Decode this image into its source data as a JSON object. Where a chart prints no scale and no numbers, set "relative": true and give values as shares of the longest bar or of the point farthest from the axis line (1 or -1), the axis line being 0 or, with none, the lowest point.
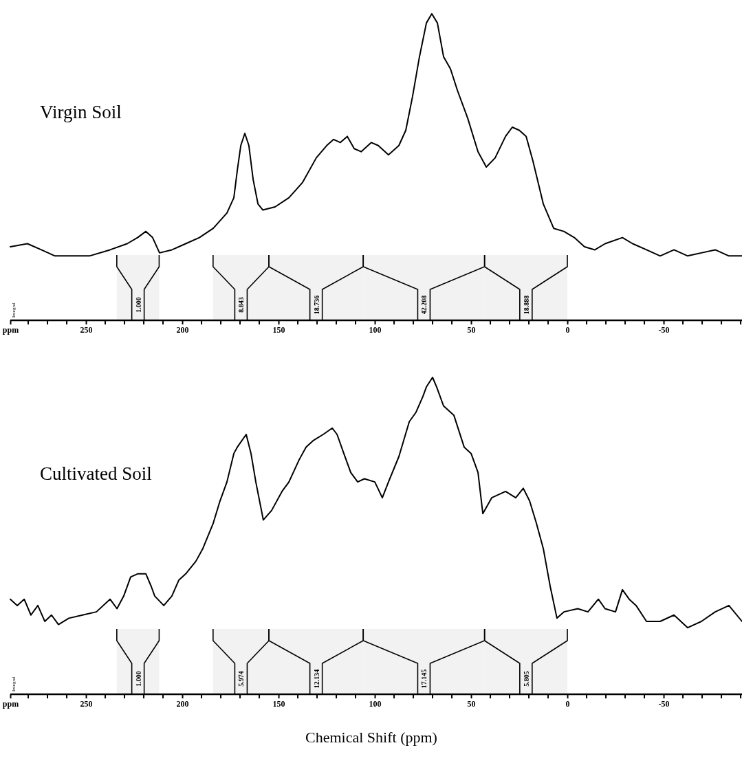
{
  "chart_data": [
    {
      "type": "line",
      "title": "Virgin Soil",
      "relative": true,
      "tick_labels": "x",
      "xlim": [
        289.3,
        -90.7
      ],
      "xticks": [
        {
          "value": 289.3,
          "label": "ppm"
        },
        {
          "value": 280,
          "label": null
        },
        {
          "value": 270,
          "label": null
        },
        {
          "value": 260,
          "label": null
        },
        250,
        {
          "value": 240,
          "label": null
        },
        {
          "value": 230,
          "label": null
        },
        {
          "value": 220,
          "label": null
        },
        {
          "value": 210,
          "label": null
        },
        200,
        {
          "value": 190,
          "label": null
        },
        {
          "value": 180,
          "label": null
        },
        {
          "value": 170,
          "label": null
        },
        {
          "value": 160,
          "label": null
        },
        150,
        {
          "value": 140,
          "label": null
        },
        {
          "value": 130,
          "label": null
        },
        {
          "value": 120,
          "label": null
        },
        {
          "value": 110,
          "label": null
        },
        100,
        {
          "value": 90,
          "label": null
        },
        {
          "value": 80,
          "label": null
        },
        {
          "value": 70,
          "label": null
        },
        {
          "value": 60,
          "label": null
        },
        50,
        {
          "value": 40,
          "label": null
        },
        {
          "value": 30,
          "label": null
        },
        {
          "value": 20,
          "label": null
        },
        {
          "value": 10,
          "label": null
        },
        0,
        {
          "value": -10,
          "label": null
        },
        {
          "value": -20,
          "label": null
        },
        {
          "value": -30,
          "label": null
        },
        {
          "value": -40,
          "label": null
        },
        -50,
        {
          "value": -60,
          "label": null
        },
        {
          "value": -70,
          "label": null
        },
        {
          "value": -80,
          "label": null
        },
        {
          "value": -90,
          "label": null
        }
      ],
      "annotations": [
        "Integral"
      ],
      "bands": [
        {
          "axis": "x",
          "from": 234,
          "to": 212,
          "label": "1.000"
        },
        {
          "axis": "x",
          "from": 184,
          "to": 155,
          "label": "8.843"
        },
        {
          "axis": "x",
          "from": 155,
          "to": 106,
          "label": "18.736"
        },
        {
          "axis": "x",
          "from": 106,
          "to": 43,
          "label": "42.208"
        },
        {
          "axis": "x",
          "from": 43,
          "to": 0,
          "label": "18.888"
        }
      ],
      "series": [
        {
          "color": "#000000",
          "x": [
            289.3,
            280.4,
            273.2,
            266.1,
            258.9,
            248.2,
            237.5,
            228.6,
            223.2,
            218.9,
            215.4,
            211.8,
            205.4,
            198.2,
            191.1,
            183.9,
            176.8,
            173.2,
            171.4,
            169.6,
            167.5,
            165.4,
            163.2,
            160.7,
            158.2,
            151.8,
            144.6,
            137.5,
            130.4,
            125.0,
            121.4,
            117.9,
            114.3,
            110.7,
            107.1,
            101.8,
            98.2,
            92.9,
            87.5,
            83.9,
            80.4,
            76.8,
            73.2,
            70.4,
            67.5,
            64.3,
            60.7,
            57.1,
            51.8,
            46.4,
            42.1,
            37.5,
            32.1,
            28.6,
            25.0,
            21.4,
            17.9,
            12.5,
            7.1,
            1.8,
            -3.6,
            -8.9,
            -14.3,
            -19.6,
            -28.6,
            -33.9,
            -41.1,
            -48.2,
            -55.4,
            -62.5,
            -69.6,
            -76.8,
            -83.9,
            -90.7
          ],
          "values": [
            0.24,
            0.25,
            0.23,
            0.21,
            0.21,
            0.21,
            0.23,
            0.25,
            0.27,
            0.29,
            0.27,
            0.22,
            0.23,
            0.25,
            0.27,
            0.3,
            0.35,
            0.4,
            0.49,
            0.57,
            0.61,
            0.57,
            0.46,
            0.38,
            0.36,
            0.37,
            0.4,
            0.45,
            0.53,
            0.57,
            0.59,
            0.58,
            0.6,
            0.56,
            0.55,
            0.58,
            0.57,
            0.54,
            0.57,
            0.62,
            0.73,
            0.86,
            0.97,
            1,
            0.97,
            0.86,
            0.82,
            0.75,
            0.66,
            0.55,
            0.5,
            0.53,
            0.6,
            0.63,
            0.62,
            0.6,
            0.52,
            0.38,
            0.3,
            0.29,
            0.27,
            0.24,
            0.23,
            0.25,
            0.27,
            0.25,
            0.23,
            0.21,
            0.23,
            0.21,
            0.22,
            0.23,
            0.21,
            0.21
          ]
        }
      ]
    },
    {
      "type": "line",
      "title": "Cultivated Soil",
      "relative": true,
      "tick_labels": "x",
      "xlabel": "Chemical Shift (ppm)",
      "xlim": [
        289.3,
        -90.7
      ],
      "xticks": [
        {
          "value": 289.3,
          "label": "ppm"
        },
        {
          "value": 280,
          "label": null
        },
        {
          "value": 270,
          "label": null
        },
        {
          "value": 260,
          "label": null
        },
        250,
        {
          "value": 240,
          "label": null
        },
        {
          "value": 230,
          "label": null
        },
        {
          "value": 220,
          "label": null
        },
        {
          "value": 210,
          "label": null
        },
        200,
        {
          "value": 190,
          "label": null
        },
        {
          "value": 180,
          "label": null
        },
        {
          "value": 170,
          "label": null
        },
        {
          "value": 160,
          "label": null
        },
        150,
        {
          "value": 140,
          "label": null
        },
        {
          "value": 130,
          "label": null
        },
        {
          "value": 120,
          "label": null
        },
        {
          "value": 110,
          "label": null
        },
        100,
        {
          "value": 90,
          "label": null
        },
        {
          "value": 80,
          "label": null
        },
        {
          "value": 70,
          "label": null
        },
        {
          "value": 60,
          "label": null
        },
        50,
        {
          "value": 40,
          "label": null
        },
        {
          "value": 30,
          "label": null
        },
        {
          "value": 20,
          "label": null
        },
        {
          "value": 10,
          "label": null
        },
        0,
        {
          "value": -10,
          "label": null
        },
        {
          "value": -20,
          "label": null
        },
        {
          "value": -30,
          "label": null
        },
        {
          "value": -40,
          "label": null
        },
        -50,
        {
          "value": -60,
          "label": null
        },
        {
          "value": -70,
          "label": null
        },
        {
          "value": -80,
          "label": null
        },
        {
          "value": -90,
          "label": null
        }
      ],
      "annotations": [
        "Integral"
      ],
      "bands": [
        {
          "axis": "x",
          "from": 234,
          "to": 212,
          "label": "1.000"
        },
        {
          "axis": "x",
          "from": 184,
          "to": 155,
          "label": "5.974"
        },
        {
          "axis": "x",
          "from": 155,
          "to": 106,
          "label": "12.134"
        },
        {
          "axis": "x",
          "from": 106,
          "to": 43,
          "label": "17.145"
        },
        {
          "axis": "x",
          "from": 43,
          "to": 0,
          "label": "5.805"
        }
      ],
      "series": [
        {
          "color": "#000000",
          "x": [
            289.3,
            285.7,
            282.1,
            278.6,
            275.0,
            271.4,
            267.9,
            264.3,
            258.9,
            251.8,
            244.6,
            237.5,
            233.9,
            230.4,
            226.8,
            223.2,
            218.9,
            216.1,
            214.3,
            209.6,
            205.4,
            201.8,
            198.2,
            192.9,
            189.3,
            183.9,
            180.4,
            176.8,
            173.2,
            171.4,
            166.8,
            164.3,
            161.8,
            157.9,
            153.6,
            148.2,
            144.6,
            139.3,
            135.7,
            132.1,
            126.8,
            122.1,
            119.6,
            116.1,
            112.5,
            108.9,
            105.4,
            100.0,
            96.1,
            92.9,
            87.5,
            82.1,
            78.6,
            75.0,
            73.2,
            70.0,
            67.9,
            64.3,
            58.9,
            53.6,
            50.0,
            46.4,
            43.9,
            39.3,
            32.1,
            26.8,
            22.9,
            19.6,
            16.1,
            12.5,
            8.9,
            5.4,
            1.8,
            -5.4,
            -10.7,
            -16.1,
            -19.6,
            -25.0,
            -28.6,
            -32.1,
            -35.7,
            -41.1,
            -48.2,
            -55.4,
            -62.5,
            -69.6,
            -76.8,
            -83.9,
            -90.7
          ],
          "values": [
            0.3,
            0.28,
            0.3,
            0.25,
            0.28,
            0.23,
            0.25,
            0.22,
            0.24,
            0.25,
            0.26,
            0.3,
            0.27,
            0.31,
            0.37,
            0.38,
            0.38,
            0.34,
            0.31,
            0.28,
            0.31,
            0.36,
            0.38,
            0.42,
            0.46,
            0.54,
            0.61,
            0.67,
            0.76,
            0.78,
            0.82,
            0.76,
            0.67,
            0.55,
            0.58,
            0.64,
            0.67,
            0.74,
            0.78,
            0.8,
            0.82,
            0.84,
            0.82,
            0.76,
            0.7,
            0.67,
            0.68,
            0.67,
            0.62,
            0.67,
            0.75,
            0.86,
            0.89,
            0.94,
            0.97,
            1,
            0.97,
            0.91,
            0.88,
            0.78,
            0.76,
            0.7,
            0.57,
            0.62,
            0.64,
            0.62,
            0.65,
            0.61,
            0.54,
            0.46,
            0.34,
            0.24,
            0.26,
            0.27,
            0.26,
            0.3,
            0.27,
            0.26,
            0.33,
            0.3,
            0.28,
            0.23,
            0.23,
            0.25,
            0.21,
            0.23,
            0.26,
            0.28,
            0.23
          ]
        }
      ]
    }
  ]
}
